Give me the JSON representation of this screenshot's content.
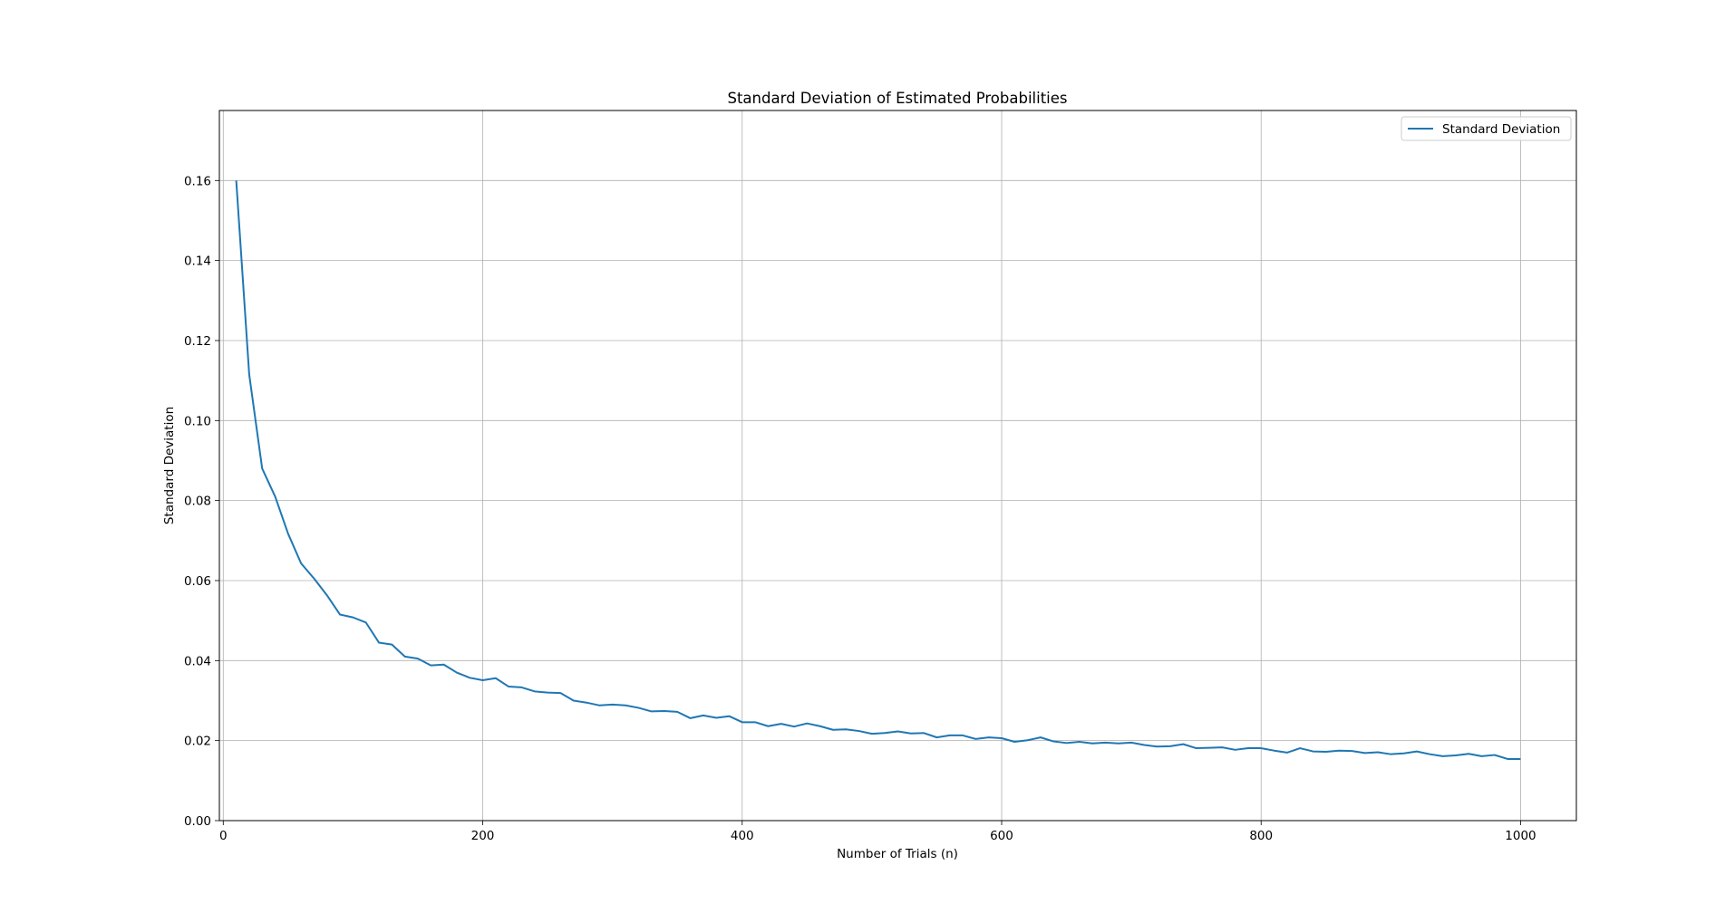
{
  "chart_data": {
    "type": "line",
    "title": "Standard Deviation of Estimated Probabilities",
    "xlabel": "Number of Trials (n)",
    "ylabel": "Standard Deviation",
    "xlim": [
      -3,
      1043
    ],
    "ylim": [
      0,
      0.1775
    ],
    "xticks": [
      0,
      200,
      400,
      600,
      800,
      1000
    ],
    "xtick_labels": [
      "0",
      "200",
      "400",
      "600",
      "800",
      "1000"
    ],
    "yticks": [
      0.0,
      0.02,
      0.04,
      0.06,
      0.08,
      0.1,
      0.12,
      0.14,
      0.16
    ],
    "ytick_labels": [
      "0.00",
      "0.02",
      "0.04",
      "0.06",
      "0.08",
      "0.10",
      "0.12",
      "0.14",
      "0.16"
    ],
    "grid": true,
    "legend_position": "top-right",
    "series": [
      {
        "name": "Standard Deviation",
        "color": "#1f77b4",
        "x": [
          10,
          20,
          30,
          40,
          50,
          60,
          70,
          80,
          90,
          100,
          110,
          120,
          130,
          140,
          150,
          160,
          170,
          180,
          190,
          200,
          210,
          220,
          230,
          240,
          250,
          260,
          270,
          280,
          290,
          300,
          310,
          320,
          330,
          340,
          350,
          360,
          370,
          380,
          390,
          400,
          410,
          420,
          430,
          440,
          450,
          460,
          470,
          480,
          490,
          500,
          510,
          520,
          530,
          540,
          550,
          560,
          570,
          580,
          590,
          600,
          610,
          620,
          630,
          640,
          650,
          660,
          670,
          680,
          690,
          700,
          710,
          720,
          730,
          740,
          750,
          760,
          770,
          780,
          790,
          800,
          810,
          820,
          830,
          840,
          850,
          860,
          870,
          880,
          890,
          900,
          910,
          920,
          930,
          940,
          950,
          960,
          970,
          980,
          990,
          1000
        ],
        "values": [
          0.16,
          0.1115,
          0.088,
          0.081,
          0.0717,
          0.0643,
          0.0605,
          0.0563,
          0.0515,
          0.0508,
          0.0495,
          0.0445,
          0.044,
          0.041,
          0.0405,
          0.0388,
          0.039,
          0.037,
          0.0357,
          0.0351,
          0.0356,
          0.0335,
          0.0333,
          0.0323,
          0.032,
          0.0319,
          0.03,
          0.0295,
          0.0288,
          0.029,
          0.0288,
          0.0282,
          0.0273,
          0.0274,
          0.0272,
          0.0256,
          0.0263,
          0.0257,
          0.0261,
          0.0246,
          0.0246,
          0.0236,
          0.0242,
          0.0235,
          0.0243,
          0.0236,
          0.0227,
          0.0228,
          0.0224,
          0.0217,
          0.0219,
          0.0223,
          0.0218,
          0.0219,
          0.0208,
          0.0213,
          0.0213,
          0.0204,
          0.0208,
          0.0206,
          0.0197,
          0.0201,
          0.0208,
          0.0198,
          0.0194,
          0.0197,
          0.0193,
          0.0195,
          0.0193,
          0.0195,
          0.0189,
          0.0185,
          0.0186,
          0.0191,
          0.0181,
          0.0182,
          0.0183,
          0.0177,
          0.0181,
          0.0181,
          0.0175,
          0.017,
          0.0181,
          0.0173,
          0.0172,
          0.0175,
          0.0174,
          0.0169,
          0.0171,
          0.0166,
          0.0168,
          0.0173,
          0.0166,
          0.0161,
          0.0163,
          0.0167,
          0.0161,
          0.0164,
          0.0154,
          0.0154
        ]
      }
    ]
  }
}
